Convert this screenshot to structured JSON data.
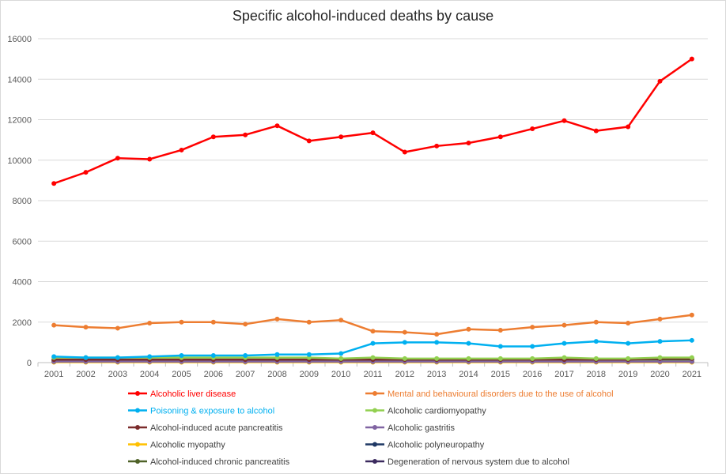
{
  "chart_data": {
    "type": "line",
    "title": "Specific alcohol-induced deaths by cause",
    "xlabel": "",
    "ylabel": "",
    "ylim": [
      0,
      16000
    ],
    "yticks": [
      0,
      2000,
      4000,
      6000,
      8000,
      10000,
      12000,
      14000,
      16000
    ],
    "grid": true,
    "legend_position": "bottom",
    "categories": [
      "2001",
      "2002",
      "2003",
      "2004",
      "2005",
      "2006",
      "2007",
      "2008",
      "2009",
      "2010",
      "2011",
      "2012",
      "2013",
      "2014",
      "2015",
      "2016",
      "2017",
      "2018",
      "2019",
      "2020",
      "2021"
    ],
    "series": [
      {
        "name": "Alcoholic liver disease",
        "color": "#ff0000",
        "values": [
          8850,
          9400,
          10100,
          10050,
          10500,
          11150,
          11250,
          11700,
          10950,
          11150,
          11350,
          10400,
          10700,
          10850,
          11150,
          11550,
          11950,
          11450,
          11650,
          13900,
          15000
        ]
      },
      {
        "name": "Mental and behavioural disorders due to the use of alcohol",
        "color": "#ed7d31",
        "values": [
          1850,
          1750,
          1700,
          1950,
          2000,
          2000,
          1900,
          2150,
          2000,
          2100,
          1550,
          1500,
          1400,
          1650,
          1600,
          1750,
          1850,
          2000,
          1950,
          2150,
          2350
        ]
      },
      {
        "name": "Poisoning & exposure to alcohol",
        "color": "#00b0f0",
        "values": [
          300,
          250,
          250,
          300,
          350,
          350,
          350,
          400,
          400,
          450,
          950,
          1000,
          1000,
          950,
          800,
          800,
          950,
          1050,
          950,
          1050,
          1100
        ]
      },
      {
        "name": "Alcoholic cardiomyopathy",
        "color": "#92d050",
        "values": [
          250,
          250,
          250,
          250,
          250,
          250,
          250,
          250,
          250,
          200,
          250,
          200,
          200,
          200,
          200,
          200,
          250,
          200,
          200,
          250,
          250
        ]
      },
      {
        "name": "Alcohol-induced acute pancreatitis",
        "color": "#7b2c2c",
        "values": [
          150,
          150,
          150,
          150,
          150,
          150,
          150,
          150,
          150,
          150,
          150,
          150,
          150,
          150,
          150,
          150,
          150,
          150,
          150,
          200,
          200
        ]
      },
      {
        "name": "Alcoholic gastritis",
        "color": "#8064a2",
        "values": [
          50,
          50,
          50,
          50,
          50,
          50,
          50,
          50,
          50,
          50,
          50,
          50,
          50,
          50,
          50,
          50,
          50,
          50,
          50,
          50,
          50
        ]
      },
      {
        "name": "Alcoholic myopathy",
        "color": "#ffc000",
        "values": [
          20,
          20,
          20,
          20,
          20,
          20,
          20,
          20,
          20,
          20,
          20,
          20,
          20,
          20,
          20,
          20,
          20,
          20,
          20,
          20,
          20
        ]
      },
      {
        "name": "Alcoholic polyneuropathy",
        "color": "#1f3864",
        "values": [
          50,
          50,
          50,
          50,
          50,
          50,
          50,
          50,
          50,
          50,
          50,
          50,
          50,
          50,
          50,
          50,
          50,
          50,
          50,
          50,
          50
        ]
      },
      {
        "name": "Alcohol-induced chronic pancreatitis",
        "color": "#4f6228",
        "values": [
          100,
          100,
          100,
          100,
          100,
          100,
          100,
          100,
          100,
          100,
          100,
          100,
          100,
          100,
          150,
          150,
          150,
          150,
          150,
          150,
          150
        ]
      },
      {
        "name": "Degeneration of nervous system due to alcohol",
        "color": "#3b2a5e",
        "values": [
          30,
          30,
          30,
          30,
          30,
          30,
          30,
          30,
          30,
          30,
          30,
          30,
          30,
          30,
          30,
          30,
          30,
          30,
          30,
          30,
          30
        ]
      }
    ]
  }
}
